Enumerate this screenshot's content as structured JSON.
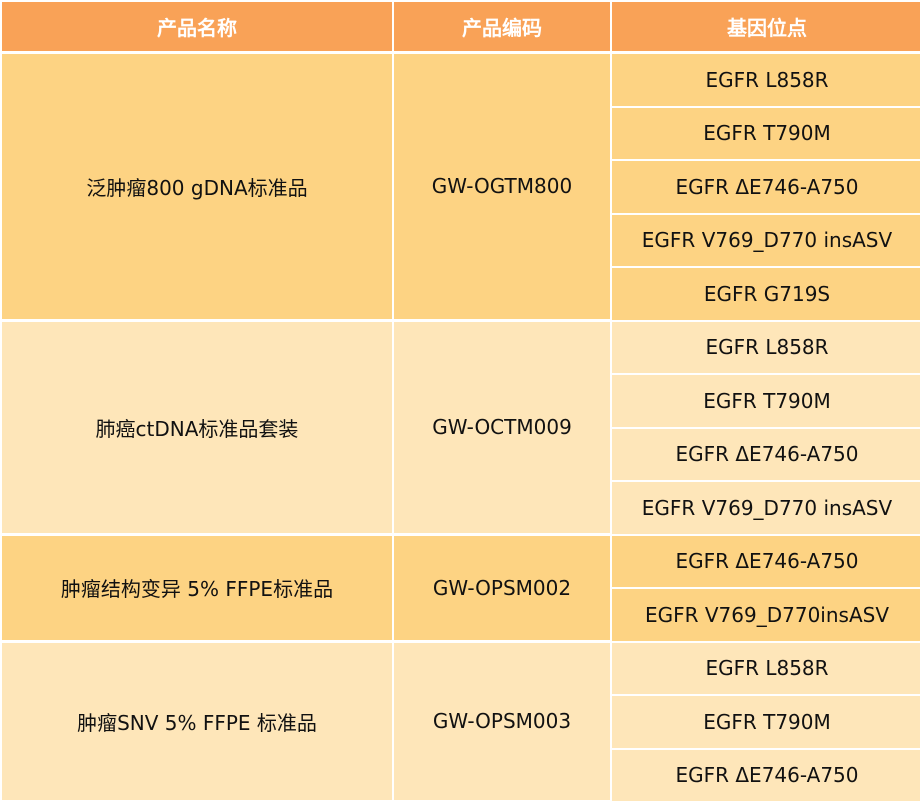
{
  "table": {
    "headers": [
      "产品名称",
      "产品编码",
      "基因位点"
    ],
    "groups": [
      {
        "name": "泛肿瘤800 gDNA标准品",
        "code": "GW-OGTM800",
        "tone": "dark",
        "sites": [
          "EGFR L858R",
          "EGFR T790M",
          "EGFR ΔE746-A750",
          "EGFR V769_D770 insASV",
          "EGFR G719S"
        ]
      },
      {
        "name": "肺癌ctDNA标准品套装",
        "code": "GW-OCTM009",
        "tone": "light",
        "sites": [
          "EGFR L858R",
          "EGFR T790M",
          "EGFR ΔE746-A750",
          "EGFR V769_D770 insASV"
        ]
      },
      {
        "name": "肿瘤结构变异 5% FFPE标准品",
        "code": "GW-OPSM002",
        "tone": "dark",
        "sites": [
          "EGFR ΔE746-A750",
          "EGFR V769_D770insASV"
        ]
      },
      {
        "name": "肿瘤SNV 5% FFPE 标准品",
        "code": "GW-OPSM003",
        "tone": "light",
        "sites": [
          "EGFR L858R",
          "EGFR T790M",
          "EGFR ΔE746-A750"
        ]
      }
    ]
  },
  "colors": {
    "header": "#f9a257",
    "dark_row": "#fdd383",
    "light_row": "#fee6b9"
  }
}
